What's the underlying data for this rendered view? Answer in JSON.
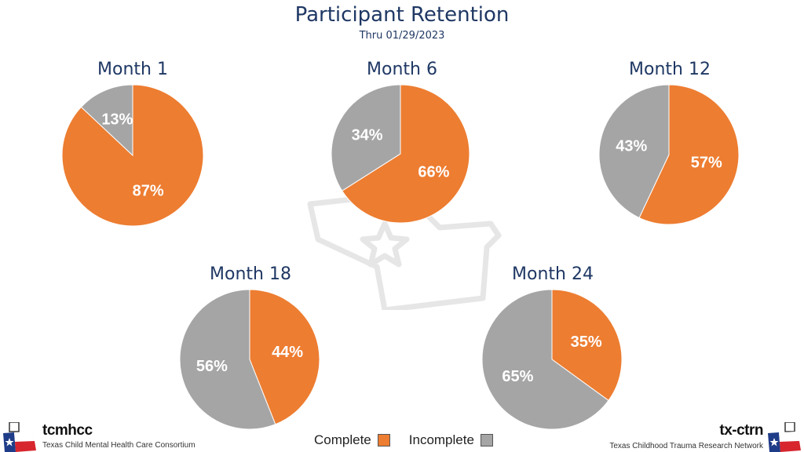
{
  "header": {
    "title": "Participant Retention",
    "subtitle": "Thru 01/29/2023"
  },
  "colors": {
    "complete": "#ed7d31",
    "incomplete": "#a5a5a5",
    "title": "#1f3864"
  },
  "chart_data": [
    {
      "type": "pie",
      "title": "Month 1",
      "series": [
        {
          "name": "Complete",
          "value": 87
        },
        {
          "name": "Incomplete",
          "value": 13
        }
      ],
      "labels": [
        "87%",
        "13%"
      ]
    },
    {
      "type": "pie",
      "title": "Month 6",
      "series": [
        {
          "name": "Complete",
          "value": 66
        },
        {
          "name": "Incomplete",
          "value": 34
        }
      ],
      "labels": [
        "66%",
        "34%"
      ]
    },
    {
      "type": "pie",
      "title": "Month 12",
      "series": [
        {
          "name": "Complete",
          "value": 57
        },
        {
          "name": "Incomplete",
          "value": 43
        }
      ],
      "labels": [
        "57%",
        "43%"
      ]
    },
    {
      "type": "pie",
      "title": "Month 18",
      "series": [
        {
          "name": "Complete",
          "value": 44
        },
        {
          "name": "Incomplete",
          "value": 56
        }
      ],
      "labels": [
        "44%",
        "56%"
      ]
    },
    {
      "type": "pie",
      "title": "Month 24",
      "series": [
        {
          "name": "Complete",
          "value": 35
        },
        {
          "name": "Incomplete",
          "value": 65
        }
      ],
      "labels": [
        "35%",
        "65%"
      ]
    }
  ],
  "legend": {
    "complete_label": "Complete",
    "incomplete_label": "Incomplete"
  },
  "logos": {
    "left_name": "tcmhcc",
    "left_sub": "Texas Child Mental Health Care Consortium",
    "right_name": "tx-ctrn",
    "right_sub": "Texas Childhood Trauma Research Network"
  }
}
